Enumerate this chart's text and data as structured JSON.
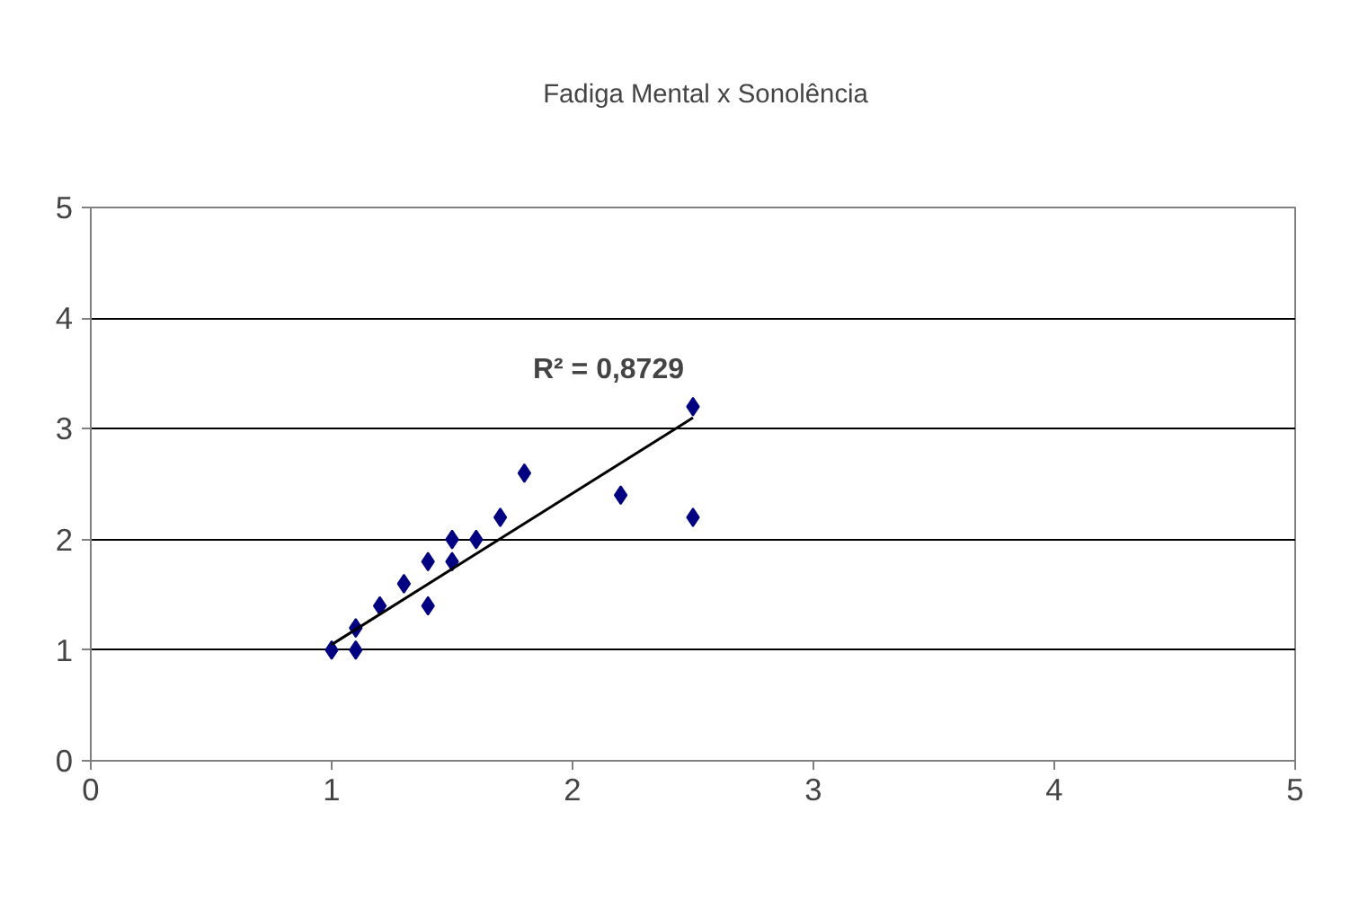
{
  "chart_data": {
    "type": "scatter",
    "marker": "diamond",
    "legend": "top",
    "grid": "y",
    "xlim": [
      0,
      5
    ],
    "ylim": [
      0,
      5
    ],
    "xticks": [
      0,
      1,
      2,
      3,
      4,
      5
    ],
    "yticks": [
      0,
      1,
      2,
      3,
      4,
      5
    ],
    "annotations": [
      "R² = 0,8729"
    ],
    "series": [
      {
        "name": "Fadiga Mental x Sonolência",
        "color": "#000080",
        "x": [
          1,
          1.1,
          1.1,
          1.2,
          1.3,
          1.4,
          1.4,
          1.5,
          1.5,
          1.6,
          1.7,
          1.8,
          2.2,
          2.5,
          2.5
        ],
        "values": [
          1,
          1,
          1.2,
          1.4,
          1.6,
          1.8,
          1.4,
          2,
          1.8,
          2,
          2.2,
          2.6,
          2.4,
          3.2,
          2.2
        ]
      },
      {
        "type": "line",
        "marker": "none",
        "color": "#000000",
        "x": [
          1,
          2.5
        ],
        "values": [
          1.05,
          3.1
        ]
      }
    ]
  }
}
